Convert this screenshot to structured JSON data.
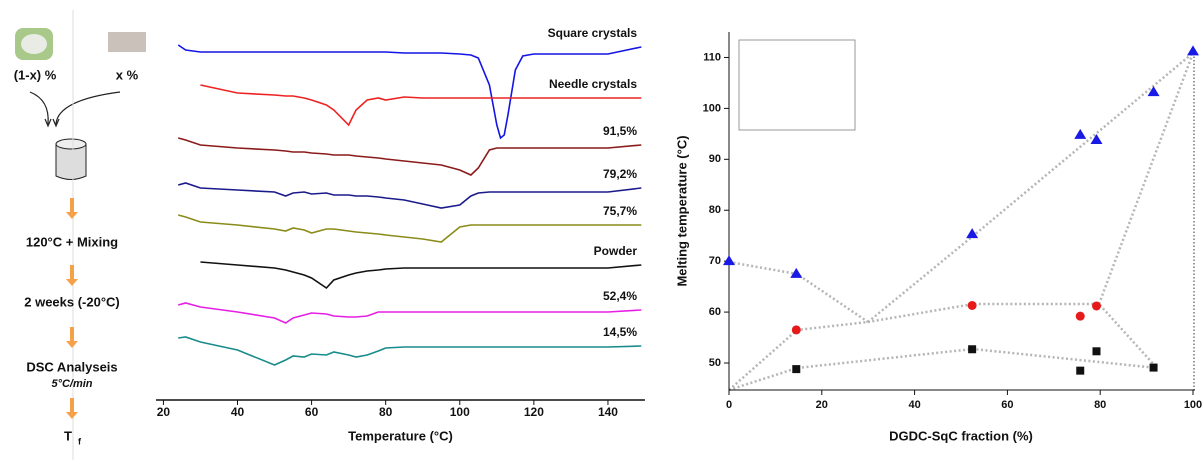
{
  "flow": {
    "inputs": [
      "(1-x) %",
      "x %"
    ],
    "steps": [
      "120°C + Mixing",
      "2 weeks (-20°C)",
      "DSC Analyseis"
    ],
    "rate": "5°C/min",
    "result": {
      "text": "T",
      "subscript": "f"
    }
  },
  "chart_data": [
    {
      "type": "line",
      "x_label": "Temperature (°C)",
      "x": [
        24,
        26,
        30,
        40,
        50,
        53,
        55,
        58,
        60,
        64,
        66,
        70,
        72,
        75,
        78,
        80,
        85,
        90,
        95,
        100,
        103,
        105,
        108,
        110,
        111,
        112,
        113,
        115,
        117,
        120,
        130,
        140,
        149
      ],
      "xlim": [
        18,
        150
      ],
      "xticks": [
        20,
        40,
        60,
        80,
        100,
        120,
        140
      ],
      "ylim": [
        0,
        100
      ],
      "series": [
        {
          "name": "Square crystals",
          "color": "#1414e6",
          "values": [
            88.75,
            87.5,
            87,
            87,
            87,
            87,
            87,
            87,
            87,
            87,
            87,
            87,
            87,
            87,
            87,
            87,
            86.75,
            86.75,
            86.75,
            86.5,
            86.25,
            85.5,
            78.75,
            68.75,
            65.5,
            66.25,
            71.25,
            82.5,
            86,
            86.5,
            86.5,
            86.5,
            88.25
          ]
        },
        {
          "name": "Needle crystals",
          "color": "#ee2222",
          "values": [
            null,
            null,
            78.75,
            76.75,
            76.25,
            76,
            76,
            75.5,
            75,
            73.75,
            72.5,
            68.75,
            72.5,
            75,
            75.5,
            75,
            75.75,
            75.5,
            75.5,
            75.5,
            75.5,
            75.5,
            75.5,
            75.5,
            75.5,
            75.5,
            75.5,
            75.5,
            75.5,
            75.5,
            75.5,
            75.5,
            75.5
          ]
        },
        {
          "name": "91,5%",
          "color": "#8b1a1a",
          "values": [
            65.5,
            65,
            63.75,
            63,
            62.5,
            62.25,
            62,
            62,
            61.75,
            61.5,
            61.25,
            61.25,
            61,
            60.75,
            60.5,
            60.25,
            59.75,
            59.25,
            58.75,
            57.5,
            56.25,
            58,
            62.5,
            63,
            63,
            63,
            63,
            63,
            63,
            63,
            63,
            63,
            63.75
          ]
        },
        {
          "name": "79,2%",
          "color": "#1a1a8b",
          "values": [
            53.75,
            54.25,
            53,
            52.5,
            52,
            51,
            51.75,
            52,
            51.5,
            51.75,
            51.25,
            51.25,
            51,
            51,
            50.75,
            50.5,
            50,
            49,
            48,
            48.75,
            51,
            51.75,
            52,
            52,
            52,
            52,
            52,
            52,
            52,
            52,
            52,
            52,
            53
          ]
        },
        {
          "name": "75,7%",
          "color": "#8b8b1a",
          "values": [
            46.25,
            45.75,
            44.5,
            43.75,
            42.75,
            42.25,
            43,
            42.5,
            41.75,
            42.75,
            42.75,
            42.25,
            42,
            41.75,
            41.5,
            41.25,
            40.75,
            40.25,
            39.5,
            43.25,
            43.75,
            43.75,
            43.75,
            43.75,
            43.75,
            43.75,
            43.75,
            43.75,
            43.75,
            43.75,
            43.75,
            43.75,
            43.75
          ]
        },
        {
          "name": "Powder",
          "color": "#111111",
          "values": [
            null,
            null,
            34.5,
            33.75,
            33,
            32.5,
            32,
            31.25,
            30.5,
            28,
            30,
            31.25,
            31.75,
            32.25,
            32.5,
            32.75,
            33,
            33,
            33,
            33,
            33,
            33,
            33,
            33,
            33,
            33,
            33,
            33,
            33,
            33,
            33,
            33,
            33.75
          ]
        },
        {
          "name": "52,4%",
          "color": "#e61ee6",
          "values": [
            23.75,
            24.25,
            23.25,
            22,
            20.5,
            19.25,
            20.5,
            21.25,
            21.75,
            21.5,
            21,
            20.75,
            20.75,
            21,
            22,
            22,
            22,
            22,
            22,
            22,
            22,
            22,
            22,
            22,
            22,
            22,
            22,
            22,
            22,
            22,
            22,
            22,
            22.5
          ]
        },
        {
          "name": "14,5%",
          "color": "#1a8b8b",
          "values": [
            15.5,
            15.75,
            14.5,
            12.5,
            8.75,
            10,
            11,
            10.75,
            11.5,
            11.25,
            12,
            11.25,
            10.75,
            11.25,
            12.25,
            13,
            13.25,
            13.25,
            13.25,
            13.25,
            13.25,
            13.25,
            13.25,
            13.25,
            13.25,
            13.25,
            13.25,
            13.25,
            13.25,
            13.25,
            13.25,
            13.25,
            13.5
          ]
        }
      ]
    },
    {
      "type": "scatter",
      "x_label": "DGDC-SqC fraction (%)",
      "y_label": "Melting temperature (°C)",
      "xlim": [
        0,
        100
      ],
      "xticks": [
        0,
        20,
        40,
        60,
        80,
        100
      ],
      "ylim": [
        44.7,
        115
      ],
      "yticks": [
        50,
        60,
        70,
        80,
        90,
        100,
        110
      ],
      "series": [
        {
          "marker": "triangle",
          "color": "#1a1ae6",
          "x": [
            0,
            14.5,
            52.4,
            75.7,
            79.2,
            91.5,
            100
          ],
          "values": [
            70,
            67.5,
            75.3,
            94.8,
            93.8,
            103.2,
            111.2
          ]
        },
        {
          "marker": "circle",
          "color": "#e61a1a",
          "x": [
            14.5,
            52.4,
            75.7,
            79.2
          ],
          "values": [
            56.5,
            61.3,
            59.2,
            61.2
          ]
        },
        {
          "marker": "square",
          "color": "#111111",
          "x": [
            14.5,
            52.4,
            75.7,
            79.2,
            91.5
          ],
          "values": [
            48.8,
            52.7,
            48.5,
            52.3,
            49.1
          ]
        }
      ]
    }
  ]
}
